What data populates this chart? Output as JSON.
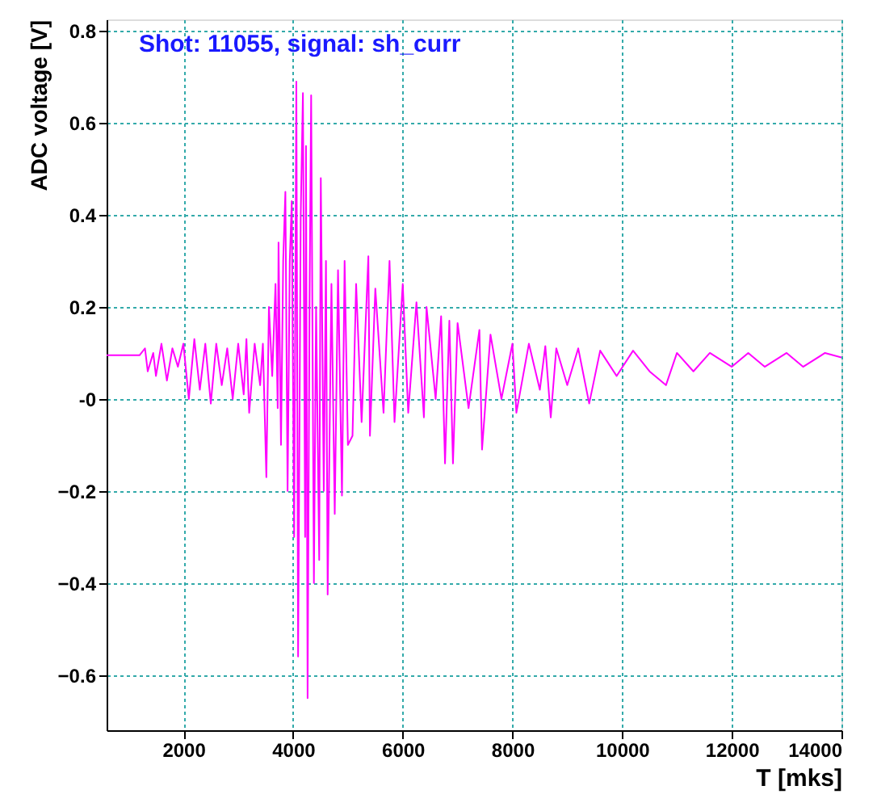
{
  "chart_data": {
    "type": "line",
    "title": "Shot:  11055, signal:  sh_curr",
    "xlabel": "T [mks]",
    "ylabel": "ADC voltage [V]",
    "xlim": [
      600,
      14000
    ],
    "ylim": [
      -0.72,
      0.825
    ],
    "xticks": [
      2000,
      4000,
      6000,
      8000,
      10000,
      12000,
      14000
    ],
    "yticks": [
      0.8,
      0.6,
      0.4,
      0.2,
      {
        "value": 0,
        "label": "-0"
      },
      -0.2,
      -0.4,
      -0.6
    ],
    "grid": true,
    "x": [
      600,
      1000,
      1200,
      1300,
      1350,
      1450,
      1500,
      1600,
      1700,
      1800,
      1900,
      2000,
      2100,
      2200,
      2300,
      2400,
      2500,
      2600,
      2700,
      2800,
      2900,
      3000,
      3100,
      3150,
      3200,
      3300,
      3400,
      3450,
      3513,
      3560,
      3620,
      3680,
      3720,
      3735,
      3780,
      3820,
      3860,
      3900,
      3940,
      3976,
      4020,
      4060,
      4092,
      4140,
      4180,
      4220,
      4236,
      4265,
      4300,
      4330,
      4380,
      4420,
      4477,
      4506,
      4560,
      4600,
      4631,
      4700,
      4760,
      4820,
      4892,
      4940,
      5000,
      5084,
      5150,
      5250,
      5373,
      5402,
      5500,
      5650,
      5759,
      5850,
      6000,
      6100,
      6250,
      6386,
      6434,
      6600,
      6700,
      6771,
      6850,
      6916,
      7000,
      7200,
      7398,
      7446,
      7600,
      7800,
      8000,
      8072,
      8300,
      8500,
      8600,
      8699,
      8800,
      9000,
      9200,
      9400,
      9600,
      9900,
      10200,
      10500,
      10800,
      11000,
      11300,
      11600,
      12000,
      12300,
      12600,
      13000,
      13300,
      13700,
      14000
    ],
    "series": [
      {
        "color": "#ff00ff",
        "values": [
          0.095,
          0.095,
          0.095,
          0.11,
          0.06,
          0.1,
          0.05,
          0.12,
          0.04,
          0.11,
          0.07,
          0.12,
          0.0,
          0.13,
          0.02,
          0.12,
          -0.01,
          0.12,
          0.03,
          0.11,
          0.0,
          0.12,
          0.01,
          0.13,
          -0.03,
          0.12,
          0.03,
          0.12,
          -0.17,
          0.2,
          0.05,
          0.25,
          -0.02,
          0.34,
          -0.1,
          0.3,
          0.45,
          -0.2,
          0.3,
          0.43,
          -0.3,
          0.69,
          -0.56,
          0.4,
          0.665,
          -0.3,
          0.55,
          -0.65,
          0.2,
          0.66,
          -0.4,
          0.2,
          -0.35,
          0.48,
          -0.2,
          0.3,
          -0.425,
          0.25,
          -0.25,
          0.28,
          -0.21,
          0.3,
          -0.1,
          -0.08,
          0.25,
          -0.05,
          0.31,
          -0.08,
          0.24,
          -0.03,
          0.3,
          -0.05,
          0.25,
          -0.03,
          0.21,
          -0.04,
          0.2,
          0.0,
          0.18,
          -0.14,
          0.17,
          -0.14,
          0.165,
          -0.02,
          0.15,
          -0.11,
          0.14,
          0.0,
          0.12,
          -0.03,
          0.12,
          0.02,
          0.115,
          -0.04,
          0.11,
          0.03,
          0.11,
          -0.01,
          0.105,
          0.05,
          0.105,
          0.06,
          0.03,
          0.1,
          0.06,
          0.1,
          0.07,
          0.1,
          0.07,
          0.1,
          0.07,
          0.1,
          0.09
        ]
      }
    ]
  }
}
